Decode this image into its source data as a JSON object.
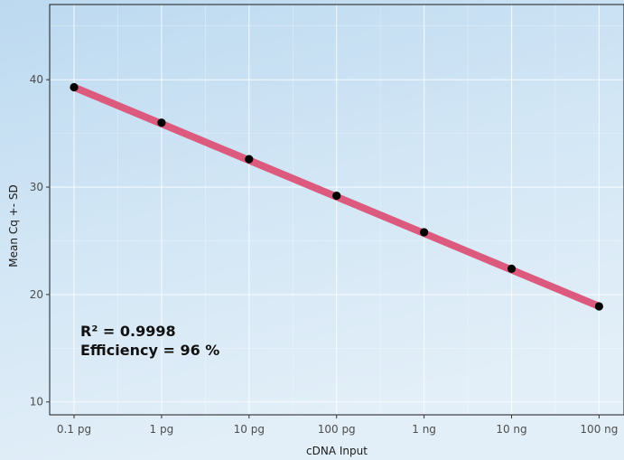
{
  "chart_data": {
    "type": "line",
    "title": "",
    "xlabel": "cDNA Input",
    "ylabel": "Mean Cq +- SD",
    "x": [
      "0.1 pg",
      "1 pg",
      "10 pg",
      "100 pg",
      "1 ng",
      "10 ng",
      "100 ng"
    ],
    "series": [
      {
        "values": [
          39.3,
          36.0,
          32.6,
          29.2,
          25.8,
          22.4,
          18.9
        ]
      }
    ],
    "fit_line": {
      "y_start": 39.3,
      "y_end": 18.9
    },
    "y_ticks": [
      10,
      20,
      30,
      40
    ],
    "ylim": [
      8.8,
      47
    ],
    "grid": true,
    "legend": "none",
    "annotations": [
      "R² = 0.9998",
      "Efficiency = 96 %"
    ],
    "colors": {
      "fit_line": "#dc5a7e",
      "points": "#000000",
      "background_top": "#bfdcf2",
      "background_bottom": "#e6f1f9"
    }
  }
}
